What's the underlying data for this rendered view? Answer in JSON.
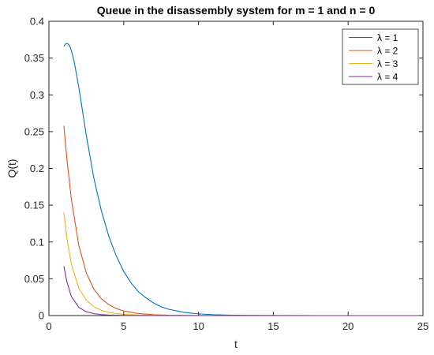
{
  "chart_data": {
    "type": "line",
    "title": "Queue in the disassembly system for m = 1 and n = 0",
    "xlabel": "t",
    "ylabel": "Q(t)",
    "xlim": [
      0,
      25
    ],
    "ylim": [
      0,
      0.4
    ],
    "xticks": [
      0,
      5,
      10,
      15,
      20,
      25
    ],
    "xtick_labels": [
      "0",
      "5",
      "10",
      "15",
      "20",
      "25"
    ],
    "yticks": [
      0,
      0.05,
      0.1,
      0.15,
      0.2,
      0.25,
      0.3,
      0.35,
      0.4
    ],
    "ytick_labels": [
      "0",
      "0.05",
      "0.1",
      "0.15",
      "0.2",
      "0.25",
      "0.3",
      "0.35",
      "0.4"
    ],
    "grid": false,
    "legend": "top-right",
    "series": [
      {
        "name": "λ = 1",
        "color": "#0072BD",
        "x": [
          1.0,
          1.1,
          1.2,
          1.3,
          1.4,
          1.5,
          1.7,
          2.0,
          2.5,
          3.0,
          3.5,
          4.0,
          4.5,
          5.0,
          5.5,
          6.0,
          6.5,
          7.0,
          7.5,
          8.0,
          9.0,
          10.0,
          11.0,
          12.0,
          13.0,
          14.0,
          16.0,
          18.0,
          20.0,
          25.0
        ],
        "y": [
          0.366,
          0.369,
          0.37,
          0.369,
          0.366,
          0.36,
          0.344,
          0.31,
          0.245,
          0.187,
          0.143,
          0.108,
          0.081,
          0.06,
          0.044,
          0.032,
          0.024,
          0.017,
          0.012,
          0.0086,
          0.0045,
          0.0023,
          0.0012,
          0.0006,
          0.0003,
          0.00015,
          4e-05,
          1e-05,
          0.0,
          0.0
        ]
      },
      {
        "name": "λ = 2",
        "color": "#D95319",
        "x": [
          1.0,
          1.2,
          1.5,
          2.0,
          2.5,
          3.0,
          3.5,
          4.0,
          4.5,
          5.0,
          6.0,
          7.0,
          8.0,
          10.0,
          12.0,
          15.0,
          20.0,
          25.0
        ],
        "y": [
          0.258,
          0.213,
          0.158,
          0.095,
          0.058,
          0.036,
          0.023,
          0.015,
          0.0095,
          0.0062,
          0.0027,
          0.0012,
          0.0005,
          0.0001,
          2e-05,
          0.0,
          0.0,
          0.0
        ]
      },
      {
        "name": "λ = 3",
        "color": "#EDB120",
        "x": [
          1.0,
          1.2,
          1.5,
          2.0,
          2.5,
          3.0,
          3.5,
          4.0,
          4.5,
          5.0,
          6.0,
          7.0,
          8.0,
          10.0,
          15.0,
          20.0,
          25.0
        ],
        "y": [
          0.14,
          0.105,
          0.07,
          0.037,
          0.021,
          0.012,
          0.0072,
          0.0044,
          0.0027,
          0.0017,
          0.0007,
          0.0003,
          0.0001,
          0.0,
          0.0,
          0.0,
          0.0
        ]
      },
      {
        "name": "λ = 4",
        "color": "#7E2F8E",
        "x": [
          1.0,
          1.2,
          1.5,
          2.0,
          2.5,
          3.0,
          3.5,
          4.0,
          5.0,
          6.0,
          8.0,
          10.0,
          15.0,
          20.0,
          25.0
        ],
        "y": [
          0.067,
          0.046,
          0.026,
          0.011,
          0.0052,
          0.0026,
          0.0013,
          0.0007,
          0.0002,
          5e-05,
          0.0,
          0.0,
          0.0,
          0.0,
          0.0
        ]
      }
    ]
  }
}
